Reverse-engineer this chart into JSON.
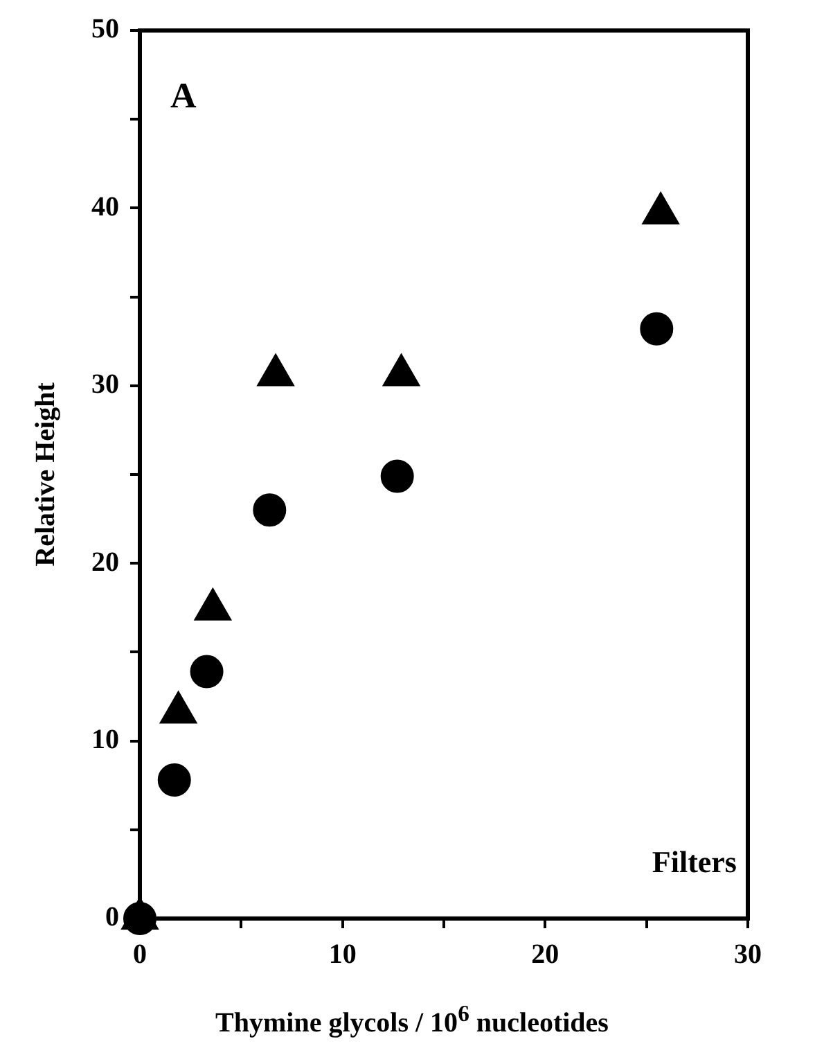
{
  "chart_data": {
    "type": "scatter",
    "xlabel": "Thymine glycols / 10$^{6}$ nucleotides",
    "ylabel": "Relative Height",
    "annotations": [
      "A",
      "Filters"
    ],
    "xlim": [
      0,
      30
    ],
    "xticks": [
      0,
      {
        "value": 5,
        "label": null
      },
      10,
      {
        "value": 15,
        "label": null
      },
      20,
      {
        "value": 25,
        "label": null
      },
      30
    ],
    "ylim": [
      0,
      50
    ],
    "yticks": [
      0,
      {
        "value": 5,
        "label": null
      },
      10,
      {
        "value": 15,
        "label": null
      },
      20,
      {
        "value": 25,
        "label": null
      },
      30,
      {
        "value": 35,
        "label": null
      },
      40,
      {
        "value": 45,
        "label": null
      },
      50
    ],
    "grid": false,
    "legend": false,
    "series": [
      {
        "color": "#000000",
        "marker": "circle",
        "x": [
          0,
          1.7,
          3.3,
          6.4,
          12.7,
          25.5
        ],
        "values": [
          0,
          7.8,
          13.9,
          23.0,
          24.9,
          33.2
        ]
      },
      {
        "color": "#000000",
        "marker": "triangle",
        "x": [
          0,
          1.9,
          3.6,
          6.7,
          12.9,
          25.7
        ],
        "values": [
          0,
          11.6,
          17.4,
          30.6,
          30.6,
          39.7
        ]
      }
    ]
  }
}
